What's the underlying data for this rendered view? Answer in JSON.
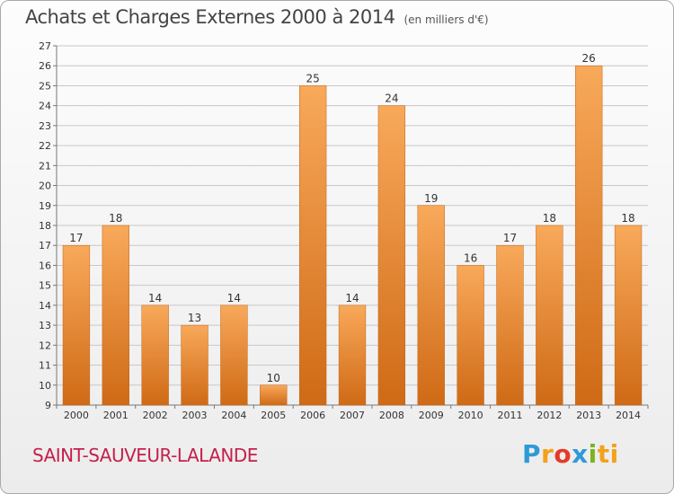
{
  "header": {
    "title": "Achats et Charges Externes 2000 à 2014",
    "subtitle": "(en milliers d'€)"
  },
  "footer": {
    "commune": "SAINT-SAUVEUR-LALANDE",
    "logo": "Proxiti"
  },
  "colors": {
    "bar_light": "#f8a95a",
    "bar_dark": "#cf6a16",
    "grid": "#c8c8c8",
    "commune_text": "#c3204d"
  },
  "chart_data": {
    "type": "bar",
    "title": "Achats et Charges Externes 2000 à 2014",
    "subtitle": "(en milliers d'€)",
    "xlabel": "",
    "ylabel": "",
    "categories": [
      "2000",
      "2001",
      "2002",
      "2003",
      "2004",
      "2005",
      "2006",
      "2007",
      "2008",
      "2009",
      "2010",
      "2011",
      "2012",
      "2013",
      "2014"
    ],
    "values": [
      17,
      18,
      14,
      13,
      14,
      10,
      25,
      14,
      24,
      19,
      16,
      17,
      18,
      26,
      18
    ],
    "ylim": [
      9,
      27
    ],
    "yticks": [
      9,
      10,
      11,
      12,
      13,
      14,
      15,
      16,
      17,
      18,
      19,
      20,
      21,
      22,
      23,
      24,
      25,
      26,
      27
    ],
    "grid": true,
    "legend": "none"
  }
}
